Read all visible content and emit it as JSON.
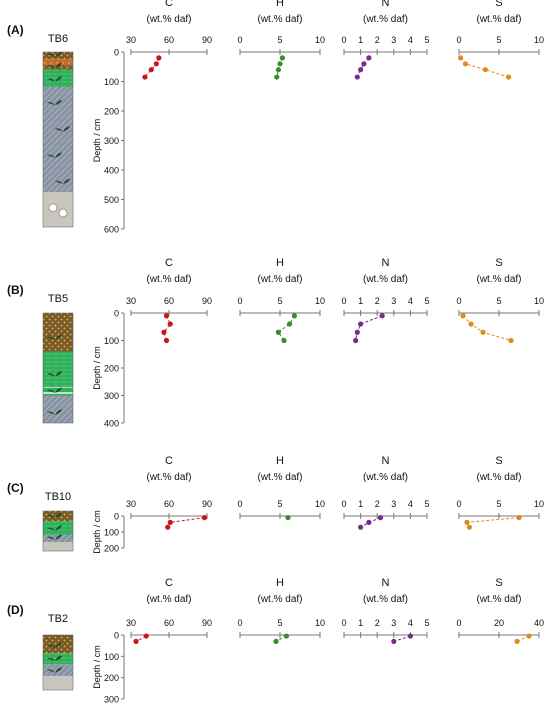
{
  "colors": {
    "C": "#c8161d",
    "H": "#3a8a2e",
    "N": "#7b2b8c",
    "S": "#e08a1e",
    "axis": "#777777",
    "soil_brown": "#7a5a2a",
    "soil_orange": "#c9692a",
    "soil_green": "#2fb05a",
    "soil_grey": "#8a93a3",
    "soil_lightgrey": "#c9c7bd",
    "leaf": "#1f4a2a"
  },
  "y_label": "Depth / cm",
  "panels": [
    {
      "id": "(A)",
      "core": "TB6",
      "depth_ticks": [
        0,
        100,
        200,
        300,
        400,
        500,
        600
      ],
      "ylim": [
        0,
        600
      ],
      "column": [
        {
          "type": "peat",
          "from": 0,
          "to": 25
        },
        {
          "type": "orange",
          "from": 25,
          "to": 45
        },
        {
          "type": "peat",
          "from": 45,
          "to": 60
        },
        {
          "type": "green",
          "from": 60,
          "to": 120
        },
        {
          "type": "grey",
          "from": 120,
          "to": 480
        },
        {
          "type": "lightgrey",
          "from": 480,
          "to": 600
        }
      ],
      "chart_data": [
        {
          "type": "line",
          "title": "C",
          "subtitle": "(wt.% daf)",
          "ticks": [
            30,
            60,
            90
          ],
          "xlim": [
            30,
            90
          ],
          "y": [
            20,
            40,
            60,
            85
          ],
          "x": [
            52,
            50,
            46,
            41
          ]
        },
        {
          "type": "line",
          "title": "H",
          "subtitle": "(wt.% daf)",
          "ticks": [
            0,
            5,
            10
          ],
          "xlim": [
            0,
            10
          ],
          "y": [
            20,
            40,
            60,
            85
          ],
          "x": [
            5.3,
            5.0,
            4.8,
            4.6
          ]
        },
        {
          "type": "line",
          "title": "N",
          "subtitle": "(wt.% daf)",
          "ticks": [
            0,
            1,
            2,
            3,
            4,
            5
          ],
          "xlim": [
            0,
            5
          ],
          "y": [
            20,
            40,
            60,
            85
          ],
          "x": [
            1.5,
            1.2,
            1.0,
            0.8
          ]
        },
        {
          "type": "line",
          "title": "S",
          "subtitle": "(wt.% daf)",
          "ticks": [
            0,
            5,
            10
          ],
          "xlim": [
            0,
            10
          ],
          "y": [
            20,
            40,
            60,
            85
          ],
          "x": [
            0.2,
            0.8,
            3.3,
            6.2
          ]
        }
      ]
    },
    {
      "id": "(B)",
      "core": "TB5",
      "depth_ticks": [
        0,
        100,
        200,
        300,
        400
      ],
      "ylim": [
        0,
        400
      ],
      "column": [
        {
          "type": "peat",
          "from": 0,
          "to": 140
        },
        {
          "type": "green",
          "from": 140,
          "to": 270
        },
        {
          "type": "stripe",
          "from": 270,
          "to": 300
        },
        {
          "type": "grey",
          "from": 300,
          "to": 400
        }
      ],
      "chart_data": [
        {
          "type": "line",
          "title": "C",
          "subtitle": "(wt.% daf)",
          "ticks": [
            30,
            60,
            90
          ],
          "xlim": [
            30,
            90
          ],
          "y": [
            10,
            40,
            70,
            100
          ],
          "x": [
            58,
            61,
            56,
            58
          ]
        },
        {
          "type": "line",
          "title": "H",
          "subtitle": "(wt.% daf)",
          "ticks": [
            0,
            5,
            10
          ],
          "xlim": [
            0,
            10
          ],
          "y": [
            10,
            40,
            70,
            100
          ],
          "x": [
            6.8,
            6.2,
            4.8,
            5.5
          ]
        },
        {
          "type": "line",
          "title": "N",
          "subtitle": "(wt.% daf)",
          "ticks": [
            0,
            1,
            2,
            3,
            4,
            5
          ],
          "xlim": [
            0,
            5
          ],
          "y": [
            10,
            40,
            70,
            100
          ],
          "x": [
            2.3,
            1.0,
            0.8,
            0.7
          ]
        },
        {
          "type": "line",
          "title": "S",
          "subtitle": "(wt.% daf)",
          "ticks": [
            0,
            5,
            10
          ],
          "xlim": [
            0,
            10
          ],
          "y": [
            10,
            40,
            70,
            100
          ],
          "x": [
            0.5,
            1.5,
            3.0,
            6.5
          ]
        }
      ]
    },
    {
      "id": "(C)",
      "core": "TB10",
      "depth_ticks": [
        0,
        100,
        200
      ],
      "ylim": [
        0,
        200
      ],
      "column": [
        {
          "type": "peat",
          "from": 0,
          "to": 50
        },
        {
          "type": "green",
          "from": 50,
          "to": 120
        },
        {
          "type": "grey",
          "from": 120,
          "to": 155
        },
        {
          "type": "lightgrey",
          "from": 155,
          "to": 200
        }
      ],
      "chart_data": [
        {
          "type": "line",
          "title": "C",
          "subtitle": "(wt.% daf)",
          "ticks": [
            30,
            60,
            90
          ],
          "xlim": [
            30,
            90
          ],
          "y": [
            10,
            40,
            70
          ],
          "x": [
            88,
            61,
            59
          ]
        },
        {
          "type": "line",
          "title": "H",
          "subtitle": "(wt.% daf)",
          "ticks": [
            0,
            5,
            10
          ],
          "xlim": [
            0,
            10
          ],
          "y": [
            10
          ],
          "x": [
            6.0
          ]
        },
        {
          "type": "line",
          "title": "N",
          "subtitle": "(wt.% daf)",
          "ticks": [
            0,
            1,
            2,
            3,
            4,
            5
          ],
          "xlim": [
            0,
            5
          ],
          "y": [
            10,
            40,
            70
          ],
          "x": [
            2.2,
            1.5,
            1.0
          ]
        },
        {
          "type": "line",
          "title": "S",
          "subtitle": "(wt.% daf)",
          "ticks": [
            0,
            5,
            10
          ],
          "xlim": [
            0,
            10
          ],
          "y": [
            10,
            40,
            70
          ],
          "x": [
            7.5,
            1.0,
            1.3
          ]
        }
      ]
    },
    {
      "id": "(D)",
      "core": "TB2",
      "depth_ticks": [
        0,
        100,
        200,
        300
      ],
      "ylim": [
        0,
        300
      ],
      "column": [
        {
          "type": "peat",
          "from": 0,
          "to": 100
        },
        {
          "type": "green",
          "from": 100,
          "to": 160
        },
        {
          "type": "grey",
          "from": 160,
          "to": 225
        },
        {
          "type": "lightgrey",
          "from": 225,
          "to": 300
        }
      ],
      "chart_data": [
        {
          "type": "line",
          "title": "C",
          "subtitle": "(wt.% daf)",
          "ticks": [
            30,
            60,
            90
          ],
          "xlim": [
            30,
            90
          ],
          "y": [
            5,
            30
          ],
          "x": [
            42,
            34
          ]
        },
        {
          "type": "line",
          "title": "H",
          "subtitle": "(wt.% daf)",
          "ticks": [
            0,
            5,
            10
          ],
          "xlim": [
            0,
            10
          ],
          "y": [
            5,
            30
          ],
          "x": [
            5.8,
            4.5
          ]
        },
        {
          "type": "line",
          "title": "N",
          "subtitle": "(wt.% daf)",
          "ticks": [
            0,
            1,
            2,
            3,
            4,
            5
          ],
          "xlim": [
            0,
            5
          ],
          "y": [
            5,
            30
          ],
          "x": [
            4.0,
            3.0
          ]
        },
        {
          "type": "line",
          "title": "S",
          "subtitle": "(wt.% daf)",
          "ticks": [
            0,
            20,
            40
          ],
          "xlim": [
            0,
            40
          ],
          "y": [
            5,
            30
          ],
          "x": [
            35,
            29
          ]
        }
      ]
    }
  ]
}
